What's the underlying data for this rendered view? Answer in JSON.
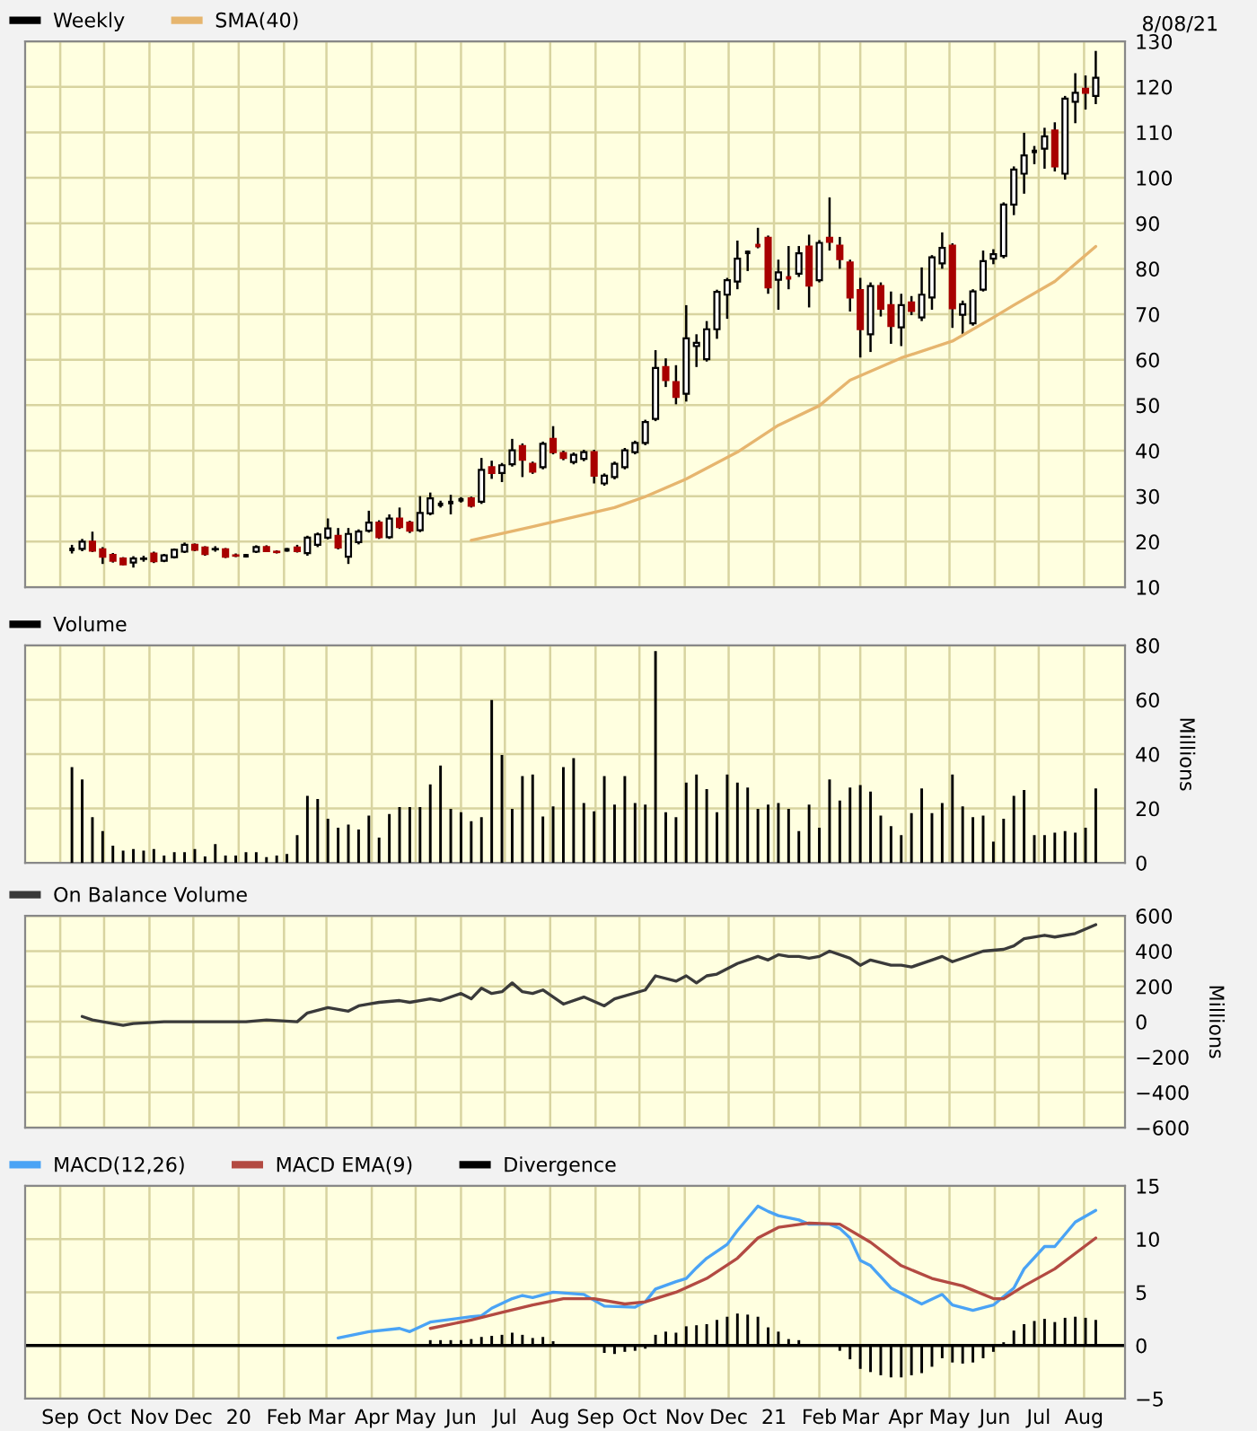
{
  "chart_data": [
    {
      "type": "candlestick",
      "legend": "top left",
      "grid": true,
      "tick_labels": "y",
      "annotations": [
        "8/08/21"
      ],
      "x": [
        "2019-09-09",
        "2019-09-16",
        "2019-09-23",
        "2019-09-30",
        "2019-10-07",
        "2019-10-14",
        "2019-10-21",
        "2019-10-28",
        "2019-11-04",
        "2019-11-11",
        "2019-11-18",
        "2019-11-25",
        "2019-12-02",
        "2019-12-09",
        "2019-12-16",
        "2019-12-23",
        "2019-12-30",
        "2020-01-06",
        "2020-01-13",
        "2020-01-20",
        "2020-01-27",
        "2020-02-03",
        "2020-02-10",
        "2020-02-17",
        "2020-02-24",
        "2020-03-02",
        "2020-03-09",
        "2020-03-16",
        "2020-03-23",
        "2020-03-30",
        "2020-04-06",
        "2020-04-13",
        "2020-04-20",
        "2020-04-27",
        "2020-05-04",
        "2020-05-11",
        "2020-05-18",
        "2020-05-25",
        "2020-06-01",
        "2020-06-08",
        "2020-06-15",
        "2020-06-22",
        "2020-06-29",
        "2020-07-06",
        "2020-07-13",
        "2020-07-20",
        "2020-07-27",
        "2020-08-03",
        "2020-08-10",
        "2020-08-17",
        "2020-08-24",
        "2020-08-31",
        "2020-09-07",
        "2020-09-14",
        "2020-09-21",
        "2020-09-28",
        "2020-10-05",
        "2020-10-12",
        "2020-10-19",
        "2020-10-26",
        "2020-11-02",
        "2020-11-09",
        "2020-11-16",
        "2020-11-23",
        "2020-11-30",
        "2020-12-07",
        "2020-12-14",
        "2020-12-21",
        "2020-12-28",
        "2021-01-04",
        "2021-01-11",
        "2021-01-18",
        "2021-01-25",
        "2021-02-01",
        "2021-02-08",
        "2021-02-15",
        "2021-02-22",
        "2021-03-01",
        "2021-03-08",
        "2021-03-15",
        "2021-03-22",
        "2021-03-29",
        "2021-04-05",
        "2021-04-12",
        "2021-04-19",
        "2021-04-26",
        "2021-05-03",
        "2021-05-10",
        "2021-05-17",
        "2021-05-24",
        "2021-05-31",
        "2021-06-07",
        "2021-06-14",
        "2021-06-21",
        "2021-06-28",
        "2021-07-05",
        "2021-07-12",
        "2021-07-19",
        "2021-07-26",
        "2021-08-02",
        "2021-08-09"
      ],
      "series": [
        {
          "name": "Weekly",
          "color": "#000000",
          "colors": [
            "#000000",
            "#ffffff",
            "#a80000",
            "#a80000",
            "#a80000",
            "#a80000",
            "#ffffff",
            "#ffffff",
            "#a80000",
            "#ffffff",
            "#ffffff",
            "#ffffff",
            "#a80000",
            "#a80000",
            "#ffffff",
            "#a80000",
            "#a80000",
            "#000000",
            "#ffffff",
            "#a80000",
            "#a80000",
            "#000000",
            "#a80000",
            "#ffffff",
            "#ffffff",
            "#ffffff",
            "#a80000",
            "#ffffff",
            "#ffffff",
            "#ffffff",
            "#a80000",
            "#ffffff",
            "#a80000",
            "#a80000",
            "#ffffff",
            "#ffffff",
            "#000000",
            "#000000",
            "#000000",
            "#a80000",
            "#ffffff",
            "#a80000",
            "#ffffff",
            "#ffffff",
            "#a80000",
            "#a80000",
            "#ffffff",
            "#a80000",
            "#a80000",
            "#ffffff",
            "#ffffff",
            "#a80000",
            "#ffffff",
            "#ffffff",
            "#ffffff",
            "#ffffff",
            "#ffffff",
            "#ffffff",
            "#a80000",
            "#a80000",
            "#ffffff",
            "#ffffff",
            "#ffffff",
            "#ffffff",
            "#ffffff",
            "#ffffff",
            "#000000",
            "#a80000",
            "#a80000",
            "#ffffff",
            "#a80000",
            "#ffffff",
            "#a80000",
            "#ffffff",
            "#a80000",
            "#a80000",
            "#a80000",
            "#a80000",
            "#ffffff",
            "#a80000",
            "#a80000",
            "#ffffff",
            "#a80000",
            "#ffffff",
            "#ffffff",
            "#ffffff",
            "#a80000",
            "#ffffff",
            "#ffffff",
            "#ffffff",
            "#ffffff",
            "#ffffff",
            "#ffffff",
            "#ffffff",
            "#000000",
            "#ffffff",
            "#a80000",
            "#ffffff",
            "#ffffff",
            "#a80000",
            "#ffffff"
          ],
          "ohlc": [
            [
              18.3,
              19.3,
              17.4,
              18.3
            ],
            [
              18.4,
              20.6,
              17.9,
              20.0
            ],
            [
              20.0,
              22.2,
              17.7,
              18.0
            ],
            [
              18.3,
              18.8,
              15.1,
              16.7
            ],
            [
              17.1,
              17.5,
              15.4,
              15.8
            ],
            [
              16.3,
              16.6,
              14.8,
              15.0
            ],
            [
              15.4,
              16.8,
              14.3,
              16.3
            ],
            [
              16.2,
              16.9,
              15.6,
              16.3
            ],
            [
              17.4,
              17.8,
              15.3,
              15.7
            ],
            [
              15.8,
              17.3,
              15.5,
              17.0
            ],
            [
              16.6,
              18.5,
              16.3,
              18.2
            ],
            [
              17.8,
              19.8,
              17.5,
              19.3
            ],
            [
              19.3,
              19.6,
              17.9,
              18.2
            ],
            [
              18.7,
              19.0,
              16.9,
              17.3
            ],
            [
              18.3,
              19.0,
              17.8,
              18.4
            ],
            [
              18.3,
              18.6,
              16.4,
              16.7
            ],
            [
              17.0,
              17.4,
              16.6,
              16.9
            ],
            [
              16.9,
              17.3,
              16.5,
              16.9
            ],
            [
              17.8,
              19.2,
              17.5,
              18.8
            ],
            [
              18.8,
              19.2,
              17.7,
              17.9
            ],
            [
              17.8,
              18.1,
              17.4,
              17.7
            ],
            [
              18.2,
              18.6,
              17.8,
              18.2
            ],
            [
              18.7,
              19.3,
              17.6,
              17.9
            ],
            [
              17.5,
              21.3,
              16.9,
              20.9
            ],
            [
              19.3,
              22.0,
              18.8,
              21.6
            ],
            [
              20.9,
              25.1,
              20.5,
              22.9
            ],
            [
              21.3,
              23.0,
              18.3,
              18.7
            ],
            [
              16.7,
              23.0,
              15.1,
              21.7
            ],
            [
              19.9,
              22.7,
              19.4,
              22.2
            ],
            [
              22.4,
              26.8,
              22.0,
              24.2
            ],
            [
              24.2,
              24.7,
              20.6,
              21.0
            ],
            [
              21.0,
              26.0,
              20.6,
              25.1
            ],
            [
              25.1,
              27.5,
              22.8,
              23.2
            ],
            [
              24.2,
              24.6,
              21.9,
              22.4
            ],
            [
              22.5,
              30.0,
              22.1,
              26.3
            ],
            [
              26.2,
              30.8,
              25.8,
              29.5
            ],
            [
              28.2,
              29.0,
              27.5,
              28.2
            ],
            [
              28.6,
              30.3,
              26.0,
              28.6
            ],
            [
              29.2,
              29.8,
              28.6,
              29.2
            ],
            [
              29.5,
              29.9,
              27.5,
              27.9
            ],
            [
              28.8,
              38.4,
              28.3,
              35.8
            ],
            [
              36.4,
              37.8,
              33.8,
              35.1
            ],
            [
              35.1,
              37.3,
              33.1,
              36.8
            ],
            [
              37.0,
              42.6,
              36.5,
              40.1
            ],
            [
              41.0,
              41.6,
              34.2,
              38.0
            ],
            [
              37.1,
              37.6,
              34.9,
              35.4
            ],
            [
              36.4,
              42.0,
              35.9,
              41.5
            ],
            [
              42.6,
              45.4,
              39.2,
              39.7
            ],
            [
              39.5,
              40.0,
              37.9,
              38.4
            ],
            [
              37.5,
              39.6,
              37.0,
              39.1
            ],
            [
              38.2,
              40.2,
              37.7,
              39.7
            ],
            [
              39.7,
              40.2,
              32.8,
              34.5
            ],
            [
              32.8,
              35.0,
              32.3,
              34.5
            ],
            [
              34.2,
              37.6,
              33.7,
              37.1
            ],
            [
              36.4,
              40.6,
              35.9,
              40.1
            ],
            [
              39.7,
              42.2,
              39.2,
              41.7
            ],
            [
              41.7,
              46.8,
              41.2,
              46.3
            ],
            [
              47.0,
              62.1,
              46.5,
              58.2
            ],
            [
              58.4,
              60.3,
              54.0,
              55.5
            ],
            [
              55.1,
              58.8,
              50.2,
              51.8
            ],
            [
              52.5,
              72.0,
              50.8,
              64.7
            ],
            [
              63.0,
              65.6,
              58.4,
              63.7
            ],
            [
              60.1,
              68.5,
              59.6,
              66.7
            ],
            [
              66.7,
              75.4,
              64.6,
              74.9
            ],
            [
              74.3,
              78.0,
              69.0,
              77.5
            ],
            [
              77.2,
              86.2,
              75.5,
              82.2
            ],
            [
              83.6,
              84.0,
              79.5,
              83.6
            ],
            [
              85.1,
              89.0,
              84.5,
              85.1
            ],
            [
              86.8,
              87.3,
              74.5,
              75.9
            ],
            [
              77.6,
              82.0,
              71.0,
              79.2
            ],
            [
              78.0,
              85.0,
              75.5,
              78.0
            ],
            [
              78.9,
              85.0,
              78.2,
              83.4
            ],
            [
              84.9,
              87.5,
              71.5,
              76.3
            ],
            [
              77.5,
              86.3,
              77.0,
              85.7
            ],
            [
              86.8,
              95.7,
              84.0,
              85.9
            ],
            [
              85.1,
              87.0,
              80.0,
              82.1
            ],
            [
              81.4,
              82.0,
              70.6,
              73.7
            ],
            [
              75.3,
              78.0,
              60.5,
              66.7
            ],
            [
              65.6,
              77.0,
              61.7,
              76.2
            ],
            [
              76.2,
              77.0,
              69.5,
              71.2
            ],
            [
              72.0,
              75.0,
              63.5,
              67.4
            ],
            [
              67.1,
              74.5,
              63.0,
              72.0
            ],
            [
              72.6,
              74.0,
              69.8,
              70.7
            ],
            [
              69.3,
              80.3,
              68.5,
              74.3
            ],
            [
              73.7,
              83.0,
              71.0,
              82.5
            ],
            [
              81.2,
              88.0,
              80.0,
              84.6
            ],
            [
              85.1,
              85.6,
              67.0,
              71.3
            ],
            [
              69.9,
              73.0,
              65.5,
              72.2
            ],
            [
              68.0,
              75.5,
              67.5,
              75.0
            ],
            [
              75.4,
              84.0,
              75.0,
              81.7
            ],
            [
              82.2,
              84.3,
              81.0,
              83.2
            ],
            [
              82.8,
              94.6,
              82.3,
              94.1
            ],
            [
              94.1,
              102.5,
              91.8,
              101.8
            ],
            [
              100.9,
              109.9,
              96.5,
              104.9
            ],
            [
              105.8,
              107.0,
              103.0,
              105.8
            ],
            [
              106.4,
              111.0,
              102.0,
              109.1
            ],
            [
              110.4,
              112.2,
              101.4,
              102.5
            ],
            [
              100.9,
              118.0,
              99.6,
              117.4
            ],
            [
              116.7,
              123.0,
              112.0,
              118.7
            ],
            [
              119.6,
              122.5,
              115.0,
              118.7
            ],
            [
              118.0,
              127.9,
              116.2,
              122.0
            ]
          ]
        },
        {
          "name": "SMA(40)",
          "type": "line",
          "color": "#e6b56e",
          "x": [
            "2020-06-08",
            "2020-07-20",
            "2020-09-14",
            "2020-10-05",
            "2020-11-02",
            "2020-12-07",
            "2021-01-04",
            "2021-02-01",
            "2021-02-22",
            "2021-03-29",
            "2021-05-03",
            "2021-05-31",
            "2021-06-14",
            "2021-07-12",
            "2021-08-09"
          ],
          "values": [
            20.3,
            23.3,
            27.5,
            29.9,
            33.8,
            39.7,
            45.6,
            49.9,
            55.5,
            60.4,
            64.1,
            69.3,
            72.0,
            77.2,
            84.9
          ]
        }
      ],
      "xlim": [
        "2019-08-08",
        "2021-08-29"
      ],
      "xticks": [
        {
          "value": "2019-09-01",
          "label": null
        },
        {
          "value": "2019-10-01",
          "label": null
        },
        {
          "value": "2019-11-01",
          "label": null
        },
        {
          "value": "2019-12-01",
          "label": null
        },
        {
          "value": "2020-01-01",
          "label": null
        },
        {
          "value": "2020-02-01",
          "label": null
        },
        {
          "value": "2020-03-01",
          "label": null
        },
        {
          "value": "2020-04-01",
          "label": null
        },
        {
          "value": "2020-05-01",
          "label": null
        },
        {
          "value": "2020-06-01",
          "label": null
        },
        {
          "value": "2020-07-01",
          "label": null
        },
        {
          "value": "2020-08-01",
          "label": null
        },
        {
          "value": "2020-09-01",
          "label": null
        },
        {
          "value": "2020-10-01",
          "label": null
        },
        {
          "value": "2020-11-01",
          "label": null
        },
        {
          "value": "2020-12-01",
          "label": null
        },
        {
          "value": "2021-01-01",
          "label": null
        },
        {
          "value": "2021-02-01",
          "label": null
        },
        {
          "value": "2021-03-01",
          "label": null
        },
        {
          "value": "2021-04-01",
          "label": null
        },
        {
          "value": "2021-05-01",
          "label": null
        },
        {
          "value": "2021-06-01",
          "label": null
        },
        {
          "value": "2021-07-01",
          "label": null
        },
        {
          "value": "2021-08-01",
          "label": null
        }
      ],
      "ylim": [
        10,
        130
      ],
      "yticks": [
        10,
        20,
        30,
        40,
        50,
        60,
        70,
        80,
        90,
        100,
        110,
        120,
        130
      ]
    },
    {
      "type": "bar",
      "legend": "top left",
      "grid": true,
      "tick_labels": "y",
      "ylabel": "Millions",
      "x": [
        "2019-09-09",
        "2019-09-16",
        "2019-09-23",
        "2019-09-30",
        "2019-10-07",
        "2019-10-14",
        "2019-10-21",
        "2019-10-28",
        "2019-11-04",
        "2019-11-11",
        "2019-11-18",
        "2019-11-25",
        "2019-12-02",
        "2019-12-09",
        "2019-12-16",
        "2019-12-23",
        "2019-12-30",
        "2020-01-06",
        "2020-01-13",
        "2020-01-20",
        "2020-01-27",
        "2020-02-03",
        "2020-02-10",
        "2020-02-17",
        "2020-02-24",
        "2020-03-02",
        "2020-03-09",
        "2020-03-16",
        "2020-03-23",
        "2020-03-30",
        "2020-04-06",
        "2020-04-13",
        "2020-04-20",
        "2020-04-27",
        "2020-05-04",
        "2020-05-11",
        "2020-05-18",
        "2020-05-25",
        "2020-06-01",
        "2020-06-08",
        "2020-06-15",
        "2020-06-22",
        "2020-06-29",
        "2020-07-06",
        "2020-07-13",
        "2020-07-20",
        "2020-07-27",
        "2020-08-03",
        "2020-08-10",
        "2020-08-17",
        "2020-08-24",
        "2020-08-31",
        "2020-09-07",
        "2020-09-14",
        "2020-09-21",
        "2020-09-28",
        "2020-10-05",
        "2020-10-12",
        "2020-10-19",
        "2020-10-26",
        "2020-11-02",
        "2020-11-09",
        "2020-11-16",
        "2020-11-23",
        "2020-11-30",
        "2020-12-07",
        "2020-12-14",
        "2020-12-21",
        "2020-12-28",
        "2021-01-04",
        "2021-01-11",
        "2021-01-18",
        "2021-01-25",
        "2021-02-01",
        "2021-02-08",
        "2021-02-15",
        "2021-02-22",
        "2021-03-01",
        "2021-03-08",
        "2021-03-15",
        "2021-03-22",
        "2021-03-29",
        "2021-04-05",
        "2021-04-12",
        "2021-04-19",
        "2021-04-26",
        "2021-05-03",
        "2021-05-10",
        "2021-05-17",
        "2021-05-24",
        "2021-05-31",
        "2021-06-07",
        "2021-06-14",
        "2021-06-21",
        "2021-06-28",
        "2021-07-05",
        "2021-07-12",
        "2021-07-19",
        "2021-07-26",
        "2021-08-02",
        "2021-08-09"
      ],
      "series": [
        {
          "name": "Volume",
          "color": "#000000",
          "values": [
            35.2,
            30.7,
            16.8,
            11.7,
            6.3,
            4.5,
            5.1,
            4.5,
            5.1,
            2.7,
            3.9,
            3.9,
            5.1,
            2.4,
            6.9,
            2.7,
            2.7,
            3.9,
            3.9,
            2.1,
            2.7,
            3.3,
            10.2,
            24.7,
            23.5,
            16.2,
            12.9,
            14.1,
            12.3,
            17.4,
            9.3,
            18.0,
            20.5,
            20.5,
            20.5,
            28.9,
            35.8,
            19.9,
            18.6,
            15.3,
            16.8,
            59.9,
            39.7,
            19.9,
            31.9,
            32.5,
            17.1,
            20.8,
            35.2,
            38.5,
            22.0,
            19.0,
            31.9,
            21.4,
            31.9,
            22.0,
            21.4,
            77.9,
            18.6,
            16.8,
            29.5,
            32.5,
            27.1,
            18.6,
            32.5,
            29.5,
            27.7,
            19.9,
            21.4,
            22.0,
            19.9,
            11.7,
            21.4,
            12.9,
            30.7,
            22.9,
            27.7,
            28.6,
            26.2,
            17.4,
            13.5,
            10.2,
            18.3,
            27.4,
            18.3,
            22.0,
            32.5,
            20.8,
            16.8,
            17.4,
            7.8,
            16.2,
            24.7,
            26.8,
            10.2,
            10.2,
            11.1,
            11.7,
            11.1,
            12.9,
            27.4
          ]
        }
      ],
      "xlim": [
        "2019-08-08",
        "2021-08-29"
      ],
      "xticks": [
        {
          "value": "2019-09-01",
          "label": null
        },
        {
          "value": "2019-10-01",
          "label": null
        },
        {
          "value": "2019-11-01",
          "label": null
        },
        {
          "value": "2019-12-01",
          "label": null
        },
        {
          "value": "2020-01-01",
          "label": null
        },
        {
          "value": "2020-02-01",
          "label": null
        },
        {
          "value": "2020-03-01",
          "label": null
        },
        {
          "value": "2020-04-01",
          "label": null
        },
        {
          "value": "2020-05-01",
          "label": null
        },
        {
          "value": "2020-06-01",
          "label": null
        },
        {
          "value": "2020-07-01",
          "label": null
        },
        {
          "value": "2020-08-01",
          "label": null
        },
        {
          "value": "2020-09-01",
          "label": null
        },
        {
          "value": "2020-10-01",
          "label": null
        },
        {
          "value": "2020-11-01",
          "label": null
        },
        {
          "value": "2020-12-01",
          "label": null
        },
        {
          "value": "2021-01-01",
          "label": null
        },
        {
          "value": "2021-02-01",
          "label": null
        },
        {
          "value": "2021-03-01",
          "label": null
        },
        {
          "value": "2021-04-01",
          "label": null
        },
        {
          "value": "2021-05-01",
          "label": null
        },
        {
          "value": "2021-06-01",
          "label": null
        },
        {
          "value": "2021-07-01",
          "label": null
        },
        {
          "value": "2021-08-01",
          "label": null
        }
      ],
      "ylim": [
        0,
        80
      ],
      "yticks": [
        0,
        20,
        40,
        60,
        80
      ]
    },
    {
      "type": "line",
      "legend": "top left",
      "grid": true,
      "tick_labels": "y",
      "ylabel": "Millions",
      "series": [
        {
          "name": "On Balance Volume",
          "color": "#3a3a3a",
          "x": [
            "2019-09-16",
            "2019-09-23",
            "2019-10-07",
            "2019-10-14",
            "2019-10-21",
            "2019-11-11",
            "2019-12-09",
            "2020-01-06",
            "2020-01-20",
            "2020-02-10",
            "2020-02-17",
            "2020-03-02",
            "2020-03-16",
            "2020-03-23",
            "2020-03-30",
            "2020-04-06",
            "2020-04-20",
            "2020-04-27",
            "2020-05-11",
            "2020-05-18",
            "2020-06-01",
            "2020-06-08",
            "2020-06-15",
            "2020-06-22",
            "2020-06-29",
            "2020-07-06",
            "2020-07-13",
            "2020-07-20",
            "2020-07-27",
            "2020-08-10",
            "2020-08-24",
            "2020-09-07",
            "2020-09-14",
            "2020-10-05",
            "2020-10-12",
            "2020-10-26",
            "2020-11-02",
            "2020-11-09",
            "2020-11-16",
            "2020-11-23",
            "2020-12-07",
            "2020-12-21",
            "2020-12-28",
            "2021-01-04",
            "2021-01-11",
            "2021-01-18",
            "2021-01-25",
            "2021-02-01",
            "2021-02-08",
            "2021-02-22",
            "2021-03-01",
            "2021-03-08",
            "2021-03-22",
            "2021-03-29",
            "2021-04-05",
            "2021-04-19",
            "2021-04-26",
            "2021-05-03",
            "2021-05-24",
            "2021-06-07",
            "2021-06-14",
            "2021-06-21",
            "2021-07-05",
            "2021-07-12",
            "2021-07-26",
            "2021-08-09"
          ],
          "values": [
            30,
            10,
            -10,
            -20,
            -10,
            0,
            0,
            0,
            10,
            0,
            50,
            80,
            60,
            90,
            100,
            110,
            120,
            110,
            130,
            120,
            160,
            130,
            190,
            160,
            170,
            220,
            170,
            160,
            180,
            100,
            140,
            90,
            130,
            180,
            260,
            230,
            260,
            220,
            260,
            270,
            330,
            370,
            350,
            380,
            370,
            370,
            360,
            370,
            400,
            360,
            320,
            350,
            320,
            320,
            310,
            350,
            370,
            340,
            400,
            410,
            430,
            470,
            490,
            480,
            500,
            550
          ]
        }
      ],
      "xlim": [
        "2019-08-08",
        "2021-08-29"
      ],
      "xticks": [
        {
          "value": "2019-09-01",
          "label": null
        },
        {
          "value": "2019-10-01",
          "label": null
        },
        {
          "value": "2019-11-01",
          "label": null
        },
        {
          "value": "2019-12-01",
          "label": null
        },
        {
          "value": "2020-01-01",
          "label": null
        },
        {
          "value": "2020-02-01",
          "label": null
        },
        {
          "value": "2020-03-01",
          "label": null
        },
        {
          "value": "2020-04-01",
          "label": null
        },
        {
          "value": "2020-05-01",
          "label": null
        },
        {
          "value": "2020-06-01",
          "label": null
        },
        {
          "value": "2020-07-01",
          "label": null
        },
        {
          "value": "2020-08-01",
          "label": null
        },
        {
          "value": "2020-09-01",
          "label": null
        },
        {
          "value": "2020-10-01",
          "label": null
        },
        {
          "value": "2020-11-01",
          "label": null
        },
        {
          "value": "2020-12-01",
          "label": null
        },
        {
          "value": "2021-01-01",
          "label": null
        },
        {
          "value": "2021-02-01",
          "label": null
        },
        {
          "value": "2021-03-01",
          "label": null
        },
        {
          "value": "2021-04-01",
          "label": null
        },
        {
          "value": "2021-05-01",
          "label": null
        },
        {
          "value": "2021-06-01",
          "label": null
        },
        {
          "value": "2021-07-01",
          "label": null
        },
        {
          "value": "2021-08-01",
          "label": null
        }
      ],
      "ylim": [
        -600,
        600
      ],
      "yticks": [
        {
          "value": -600,
          "label": "−600"
        },
        {
          "value": -400,
          "label": "−400"
        },
        {
          "value": -200,
          "label": "−200"
        },
        0,
        200,
        400,
        600
      ]
    },
    {
      "type": "line",
      "legend": "top left",
      "grid": true,
      "series": [
        {
          "name": "MACD(12,26)",
          "color": "#4aa3f5",
          "x": [
            "2020-03-09",
            "2020-03-30",
            "2020-04-20",
            "2020-04-27",
            "2020-05-11",
            "2020-06-08",
            "2020-06-15",
            "2020-06-22",
            "2020-07-06",
            "2020-07-13",
            "2020-07-20",
            "2020-08-03",
            "2020-08-24",
            "2020-09-07",
            "2020-09-28",
            "2020-10-05",
            "2020-10-12",
            "2020-10-26",
            "2020-11-02",
            "2020-11-09",
            "2020-11-16",
            "2020-11-30",
            "2020-12-07",
            "2020-12-21",
            "2020-12-28",
            "2021-01-04",
            "2021-01-18",
            "2021-01-25",
            "2021-02-08",
            "2021-02-15",
            "2021-02-22",
            "2021-03-01",
            "2021-03-08",
            "2021-03-22",
            "2021-04-05",
            "2021-04-12",
            "2021-04-26",
            "2021-05-03",
            "2021-05-17",
            "2021-05-31",
            "2021-06-14",
            "2021-06-21",
            "2021-07-05",
            "2021-07-12",
            "2021-07-26",
            "2021-08-09"
          ],
          "values": [
            0.7,
            1.3,
            1.6,
            1.3,
            2.2,
            2.7,
            2.8,
            3.5,
            4.4,
            4.7,
            4.5,
            5.0,
            4.8,
            3.7,
            3.6,
            4.1,
            5.3,
            6.0,
            6.3,
            7.3,
            8.2,
            9.5,
            10.8,
            13.1,
            12.6,
            12.2,
            11.8,
            11.4,
            11.4,
            11.0,
            10.1,
            8.0,
            7.5,
            5.4,
            4.4,
            3.9,
            4.8,
            3.8,
            3.3,
            3.8,
            5.4,
            7.2,
            9.3,
            9.3,
            11.6,
            12.7
          ]
        },
        {
          "name": "MACD EMA(9)",
          "color": "#b34a42",
          "x": [
            "2020-05-11",
            "2020-06-08",
            "2020-06-29",
            "2020-07-20",
            "2020-08-10",
            "2020-08-31",
            "2020-09-21",
            "2020-10-05",
            "2020-10-26",
            "2020-11-16",
            "2020-12-07",
            "2020-12-21",
            "2021-01-04",
            "2021-01-25",
            "2021-02-15",
            "2021-03-08",
            "2021-03-29",
            "2021-04-19",
            "2021-05-10",
            "2021-05-31",
            "2021-06-07",
            "2021-06-21",
            "2021-07-12",
            "2021-08-09"
          ],
          "values": [
            1.6,
            2.4,
            3.1,
            3.8,
            4.4,
            4.4,
            3.9,
            4.1,
            5.0,
            6.3,
            8.2,
            10.1,
            11.1,
            11.5,
            11.4,
            9.7,
            7.5,
            6.3,
            5.6,
            4.4,
            4.4,
            5.6,
            7.2,
            10.1
          ]
        },
        {
          "name": "Divergence",
          "type": "bar",
          "color": "#000000",
          "x": [
            "2020-05-11",
            "2020-05-18",
            "2020-05-25",
            "2020-06-01",
            "2020-06-08",
            "2020-06-15",
            "2020-06-22",
            "2020-06-29",
            "2020-07-06",
            "2020-07-13",
            "2020-07-20",
            "2020-07-27",
            "2020-08-03",
            "2020-08-10",
            "2020-08-17",
            "2020-08-31",
            "2020-09-07",
            "2020-09-14",
            "2020-09-21",
            "2020-09-28",
            "2020-10-05",
            "2020-10-12",
            "2020-10-19",
            "2020-10-26",
            "2020-11-02",
            "2020-11-09",
            "2020-11-16",
            "2020-11-23",
            "2020-11-30",
            "2020-12-07",
            "2020-12-14",
            "2020-12-21",
            "2020-12-28",
            "2021-01-04",
            "2021-01-11",
            "2021-01-18",
            "2021-02-15",
            "2021-02-22",
            "2021-03-01",
            "2021-03-08",
            "2021-03-15",
            "2021-03-22",
            "2021-03-29",
            "2021-04-05",
            "2021-04-12",
            "2021-04-19",
            "2021-04-26",
            "2021-05-03",
            "2021-05-10",
            "2021-05-17",
            "2021-05-24",
            "2021-05-31",
            "2021-06-07",
            "2021-06-14",
            "2021-06-21",
            "2021-06-28",
            "2021-07-05",
            "2021-07-12",
            "2021-07-19",
            "2021-07-26",
            "2021-08-02",
            "2021-08-09"
          ],
          "values": [
            0.5,
            0.5,
            0.5,
            0.5,
            0.6,
            0.8,
            0.9,
            1.0,
            1.2,
            1.0,
            0.7,
            0.8,
            0.4,
            null,
            0.1,
            null,
            -0.7,
            -0.8,
            -0.6,
            -0.5,
            -0.3,
            1.0,
            1.3,
            1.2,
            1.8,
            1.9,
            2.0,
            2.4,
            2.7,
            3.0,
            2.9,
            2.7,
            1.7,
            1.3,
            0.6,
            0.5,
            -0.5,
            -1.3,
            -2.2,
            -2.5,
            -2.8,
            -3.0,
            -3.0,
            -2.8,
            -2.6,
            -2.0,
            -1.2,
            -1.6,
            -1.7,
            -1.6,
            -1.2,
            -0.6,
            0.3,
            1.4,
            2.0,
            2.3,
            2.5,
            2.2,
            2.6,
            2.7,
            2.6,
            2.4
          ]
        }
      ],
      "ref_lines": [
        {
          "axis": "y",
          "value": 0,
          "color": "#000000"
        }
      ],
      "xlim": [
        "2019-08-08",
        "2021-08-29"
      ],
      "xticks": [
        {
          "value": "2019-09-01",
          "label": "Sep"
        },
        {
          "value": "2019-10-01",
          "label": "Oct"
        },
        {
          "value": "2019-11-01",
          "label": "Nov"
        },
        {
          "value": "2019-12-01",
          "label": "Dec"
        },
        {
          "value": "2020-01-01",
          "label": "20"
        },
        {
          "value": "2020-02-01",
          "label": "Feb"
        },
        {
          "value": "2020-03-01",
          "label": "Mar"
        },
        {
          "value": "2020-04-01",
          "label": "Apr"
        },
        {
          "value": "2020-05-01",
          "label": "May"
        },
        {
          "value": "2020-06-01",
          "label": "Jun"
        },
        {
          "value": "2020-07-01",
          "label": "Jul"
        },
        {
          "value": "2020-08-01",
          "label": "Aug"
        },
        {
          "value": "2020-09-01",
          "label": "Sep"
        },
        {
          "value": "2020-10-01",
          "label": "Oct"
        },
        {
          "value": "2020-11-01",
          "label": "Nov"
        },
        {
          "value": "2020-12-01",
          "label": "Dec"
        },
        {
          "value": "2021-01-01",
          "label": "21"
        },
        {
          "value": "2021-02-01",
          "label": "Feb"
        },
        {
          "value": "2021-03-01",
          "label": "Mar"
        },
        {
          "value": "2021-04-01",
          "label": "Apr"
        },
        {
          "value": "2021-05-01",
          "label": "May"
        },
        {
          "value": "2021-06-01",
          "label": "Jun"
        },
        {
          "value": "2021-07-01",
          "label": "Jul"
        },
        {
          "value": "2021-08-01",
          "label": "Aug"
        }
      ],
      "ylim": [
        -5,
        15
      ],
      "yticks": [
        {
          "value": -5,
          "label": "−5"
        },
        0,
        5,
        10,
        15
      ]
    }
  ]
}
